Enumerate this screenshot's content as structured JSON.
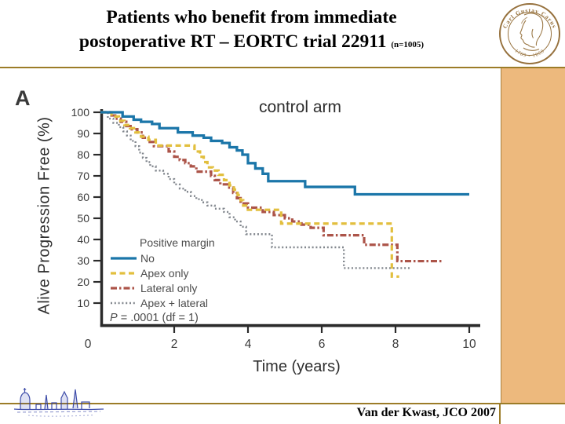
{
  "slide": {
    "title_line1": "Patients who benefit from immediate",
    "title_line2": "postoperative RT – EORTC trial 22911",
    "title_suffix": "(n=1005)",
    "citation": "Van der Kwast, JCO 2007",
    "logo": {
      "top_text": "Carl Gustav Carus",
      "bottom_text": "1789 - 1869"
    }
  },
  "colors": {
    "accent_tan": "#edb97d",
    "rule_gold": "#9c7c28",
    "axis": "#2b2b2b",
    "tick_text": "#3a3a3a",
    "legend_text": "#4c4c4c"
  },
  "chart_data": {
    "type": "line",
    "subtype": "kaplan-meier-step",
    "panel_label": "A",
    "annotation": "control arm",
    "xlabel": "Time (years)",
    "ylabel": "Alive Progression Free (%)",
    "xlim": [
      0,
      10
    ],
    "ylim": [
      0,
      100
    ],
    "x_ticks": [
      0,
      2,
      4,
      6,
      8,
      10
    ],
    "y_ticks": [
      100,
      90,
      80,
      70,
      60,
      50,
      40,
      30,
      20,
      10
    ],
    "grid": false,
    "legend_position": "lower-left-inside",
    "legend_title": "Positive margin",
    "p_text_italic": "P",
    "p_text_rest": " = .0001 (df = 1)",
    "series": [
      {
        "name": "Apex + lateral",
        "style": "dotted",
        "color": "#82878e",
        "width": 2.4,
        "dash": "2 2.8",
        "points": [
          [
            0,
            100
          ],
          [
            0.2,
            97
          ],
          [
            0.35,
            95
          ],
          [
            0.5,
            93
          ],
          [
            0.62,
            91
          ],
          [
            0.72,
            89
          ],
          [
            0.82,
            86.5
          ],
          [
            0.95,
            84
          ],
          [
            1.05,
            81
          ],
          [
            1.15,
            78.5
          ],
          [
            1.25,
            76.5
          ],
          [
            1.35,
            74.5
          ],
          [
            1.5,
            72.5
          ],
          [
            1.7,
            71
          ],
          [
            1.85,
            68.5
          ],
          [
            2.0,
            66
          ],
          [
            2.15,
            64
          ],
          [
            2.3,
            62.5
          ],
          [
            2.45,
            60.5
          ],
          [
            2.6,
            59
          ],
          [
            2.75,
            57.5
          ],
          [
            2.9,
            56
          ],
          [
            3.1,
            54.5
          ],
          [
            3.35,
            53
          ],
          [
            3.5,
            50.5
          ],
          [
            3.65,
            48.5
          ],
          [
            3.8,
            46
          ],
          [
            3.95,
            42.5
          ],
          [
            4.65,
            36.3
          ],
          [
            6.6,
            26.5
          ],
          [
            8.4,
            26.5
          ]
        ]
      },
      {
        "name": "Lateral only",
        "style": "dashdot",
        "color": "#ac5449",
        "width": 3.2,
        "dash": "8 3 2.5 3",
        "points": [
          [
            0,
            100
          ],
          [
            0.25,
            98.5
          ],
          [
            0.4,
            97
          ],
          [
            0.55,
            95.5
          ],
          [
            0.7,
            93.5
          ],
          [
            0.85,
            92
          ],
          [
            1.0,
            90.5
          ],
          [
            1.15,
            88
          ],
          [
            1.3,
            86
          ],
          [
            1.45,
            84
          ],
          [
            1.85,
            81.5
          ],
          [
            2.0,
            79
          ],
          [
            2.15,
            77.5
          ],
          [
            2.3,
            76
          ],
          [
            2.45,
            74.5
          ],
          [
            2.6,
            72
          ],
          [
            3.0,
            70
          ],
          [
            3.1,
            68
          ],
          [
            3.25,
            66
          ],
          [
            3.45,
            64.5
          ],
          [
            3.6,
            62
          ],
          [
            3.7,
            59.5
          ],
          [
            3.8,
            57
          ],
          [
            4.0,
            55
          ],
          [
            4.4,
            53
          ],
          [
            4.7,
            51.5
          ],
          [
            5.0,
            50
          ],
          [
            5.2,
            48.5
          ],
          [
            5.45,
            47
          ],
          [
            5.7,
            45.5
          ],
          [
            6.05,
            42
          ],
          [
            7.15,
            37.5
          ],
          [
            8.05,
            29.8
          ],
          [
            9.25,
            29.8
          ]
        ]
      },
      {
        "name": "Apex only",
        "style": "dashed",
        "color": "#e2bf3e",
        "width": 3.2,
        "dash": "7 4.5",
        "points": [
          [
            0,
            100
          ],
          [
            0.3,
            98
          ],
          [
            0.5,
            96
          ],
          [
            0.65,
            94
          ],
          [
            0.8,
            92.5
          ],
          [
            0.95,
            90.5
          ],
          [
            1.1,
            88.5
          ],
          [
            1.3,
            87
          ],
          [
            1.5,
            84.3
          ],
          [
            2.55,
            81.5
          ],
          [
            2.7,
            79
          ],
          [
            2.8,
            76.5
          ],
          [
            2.9,
            74
          ],
          [
            3.05,
            72.5
          ],
          [
            3.2,
            70.5
          ],
          [
            3.35,
            68
          ],
          [
            3.5,
            65.5
          ],
          [
            3.62,
            63.5
          ],
          [
            3.72,
            61
          ],
          [
            3.8,
            58.5
          ],
          [
            3.87,
            56
          ],
          [
            3.95,
            54
          ],
          [
            4.9,
            47.5
          ],
          [
            7.9,
            22.5
          ],
          [
            8.1,
            22.5
          ]
        ]
      },
      {
        "name": "No",
        "style": "solid",
        "color": "#1b76a9",
        "width": 3.3,
        "dash": "",
        "points": [
          [
            0,
            100
          ],
          [
            0.6,
            98
          ],
          [
            0.9,
            96.5
          ],
          [
            1.1,
            95.5
          ],
          [
            1.4,
            94.5
          ],
          [
            1.6,
            92.5
          ],
          [
            2.1,
            90.5
          ],
          [
            2.5,
            89
          ],
          [
            2.8,
            88
          ],
          [
            3.0,
            86.5
          ],
          [
            3.3,
            85.5
          ],
          [
            3.5,
            83.5
          ],
          [
            3.7,
            82
          ],
          [
            3.85,
            80
          ],
          [
            4.0,
            76
          ],
          [
            4.2,
            73.5
          ],
          [
            4.4,
            71
          ],
          [
            4.55,
            67.5
          ],
          [
            5.55,
            64.8
          ],
          [
            6.9,
            61.3
          ],
          [
            10,
            61.3
          ]
        ]
      }
    ],
    "legend_order": [
      "No",
      "Apex only",
      "Lateral only",
      "Apex + lateral"
    ]
  }
}
